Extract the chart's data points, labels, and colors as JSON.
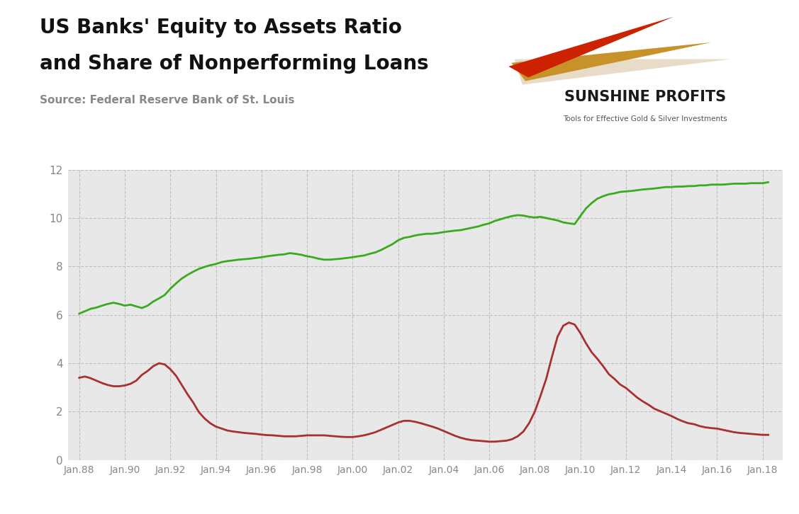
{
  "title_line1": "US Banks' Equity to Assets Ratio",
  "title_line2": "and Share of Nonperforming Loans",
  "source": "Source: Federal Reserve Bank of St. Louis",
  "plot_bg_color": "#e8e8e8",
  "outer_bg_color": "#ffffff",
  "ylim": [
    0,
    12
  ],
  "yticks": [
    0,
    2,
    4,
    6,
    8,
    10,
    12
  ],
  "xtick_labels": [
    "Jan.88",
    "Jan.90",
    "Jan.92",
    "Jan.94",
    "Jan.96",
    "Jan.98",
    "Jan.00",
    "Jan.02",
    "Jan.04",
    "Jan.06",
    "Jan.08",
    "Jan.10",
    "Jan.12",
    "Jan.14",
    "Jan.16",
    "Jan.18"
  ],
  "xtick_years": [
    1988,
    1990,
    1992,
    1994,
    1996,
    1998,
    2000,
    2002,
    2004,
    2006,
    2008,
    2010,
    2012,
    2014,
    2016,
    2018
  ],
  "green_color": "#3aaa1e",
  "red_color": "#a83030",
  "line_width": 2.0,
  "equity_data": [
    [
      1988.0,
      6.05
    ],
    [
      1988.25,
      6.15
    ],
    [
      1988.5,
      6.25
    ],
    [
      1988.75,
      6.3
    ],
    [
      1989.0,
      6.38
    ],
    [
      1989.25,
      6.45
    ],
    [
      1989.5,
      6.5
    ],
    [
      1989.75,
      6.45
    ],
    [
      1990.0,
      6.38
    ],
    [
      1990.25,
      6.42
    ],
    [
      1990.5,
      6.35
    ],
    [
      1990.75,
      6.28
    ],
    [
      1991.0,
      6.38
    ],
    [
      1991.25,
      6.55
    ],
    [
      1991.5,
      6.68
    ],
    [
      1991.75,
      6.82
    ],
    [
      1992.0,
      7.08
    ],
    [
      1992.25,
      7.3
    ],
    [
      1992.5,
      7.5
    ],
    [
      1992.75,
      7.65
    ],
    [
      1993.0,
      7.78
    ],
    [
      1993.25,
      7.9
    ],
    [
      1993.5,
      7.98
    ],
    [
      1993.75,
      8.05
    ],
    [
      1994.0,
      8.1
    ],
    [
      1994.25,
      8.18
    ],
    [
      1994.5,
      8.22
    ],
    [
      1994.75,
      8.25
    ],
    [
      1995.0,
      8.28
    ],
    [
      1995.25,
      8.3
    ],
    [
      1995.5,
      8.32
    ],
    [
      1995.75,
      8.35
    ],
    [
      1996.0,
      8.38
    ],
    [
      1996.25,
      8.42
    ],
    [
      1996.5,
      8.45
    ],
    [
      1996.75,
      8.48
    ],
    [
      1997.0,
      8.5
    ],
    [
      1997.25,
      8.55
    ],
    [
      1997.5,
      8.52
    ],
    [
      1997.75,
      8.48
    ],
    [
      1998.0,
      8.42
    ],
    [
      1998.25,
      8.38
    ],
    [
      1998.5,
      8.32
    ],
    [
      1998.75,
      8.28
    ],
    [
      1999.0,
      8.28
    ],
    [
      1999.25,
      8.3
    ],
    [
      1999.5,
      8.32
    ],
    [
      1999.75,
      8.35
    ],
    [
      2000.0,
      8.38
    ],
    [
      2000.25,
      8.42
    ],
    [
      2000.5,
      8.45
    ],
    [
      2000.75,
      8.52
    ],
    [
      2001.0,
      8.58
    ],
    [
      2001.25,
      8.68
    ],
    [
      2001.5,
      8.8
    ],
    [
      2001.75,
      8.92
    ],
    [
      2002.0,
      9.08
    ],
    [
      2002.25,
      9.18
    ],
    [
      2002.5,
      9.22
    ],
    [
      2002.75,
      9.28
    ],
    [
      2003.0,
      9.32
    ],
    [
      2003.25,
      9.35
    ],
    [
      2003.5,
      9.35
    ],
    [
      2003.75,
      9.38
    ],
    [
      2004.0,
      9.42
    ],
    [
      2004.25,
      9.45
    ],
    [
      2004.5,
      9.48
    ],
    [
      2004.75,
      9.5
    ],
    [
      2005.0,
      9.55
    ],
    [
      2005.25,
      9.6
    ],
    [
      2005.5,
      9.65
    ],
    [
      2005.75,
      9.72
    ],
    [
      2006.0,
      9.78
    ],
    [
      2006.25,
      9.88
    ],
    [
      2006.5,
      9.95
    ],
    [
      2006.75,
      10.02
    ],
    [
      2007.0,
      10.08
    ],
    [
      2007.25,
      10.12
    ],
    [
      2007.5,
      10.1
    ],
    [
      2007.75,
      10.05
    ],
    [
      2008.0,
      10.02
    ],
    [
      2008.25,
      10.05
    ],
    [
      2008.5,
      10.0
    ],
    [
      2008.75,
      9.95
    ],
    [
      2009.0,
      9.9
    ],
    [
      2009.25,
      9.82
    ],
    [
      2009.5,
      9.78
    ],
    [
      2009.75,
      9.75
    ],
    [
      2010.0,
      10.08
    ],
    [
      2010.25,
      10.4
    ],
    [
      2010.5,
      10.62
    ],
    [
      2010.75,
      10.8
    ],
    [
      2011.0,
      10.9
    ],
    [
      2011.25,
      10.98
    ],
    [
      2011.5,
      11.02
    ],
    [
      2011.75,
      11.08
    ],
    [
      2012.0,
      11.1
    ],
    [
      2012.25,
      11.12
    ],
    [
      2012.5,
      11.15
    ],
    [
      2012.75,
      11.18
    ],
    [
      2013.0,
      11.2
    ],
    [
      2013.25,
      11.22
    ],
    [
      2013.5,
      11.25
    ],
    [
      2013.75,
      11.28
    ],
    [
      2014.0,
      11.28
    ],
    [
      2014.25,
      11.3
    ],
    [
      2014.5,
      11.3
    ],
    [
      2014.75,
      11.32
    ],
    [
      2015.0,
      11.32
    ],
    [
      2015.25,
      11.35
    ],
    [
      2015.5,
      11.35
    ],
    [
      2015.75,
      11.38
    ],
    [
      2016.0,
      11.38
    ],
    [
      2016.25,
      11.38
    ],
    [
      2016.5,
      11.4
    ],
    [
      2016.75,
      11.42
    ],
    [
      2017.0,
      11.42
    ],
    [
      2017.25,
      11.42
    ],
    [
      2017.5,
      11.44
    ],
    [
      2017.75,
      11.44
    ],
    [
      2018.0,
      11.44
    ],
    [
      2018.25,
      11.48
    ]
  ],
  "npl_data": [
    [
      1988.0,
      3.4
    ],
    [
      1988.25,
      3.45
    ],
    [
      1988.5,
      3.38
    ],
    [
      1988.75,
      3.28
    ],
    [
      1989.0,
      3.18
    ],
    [
      1989.25,
      3.1
    ],
    [
      1989.5,
      3.05
    ],
    [
      1989.75,
      3.05
    ],
    [
      1990.0,
      3.08
    ],
    [
      1990.25,
      3.15
    ],
    [
      1990.5,
      3.28
    ],
    [
      1990.75,
      3.52
    ],
    [
      1991.0,
      3.68
    ],
    [
      1991.25,
      3.88
    ],
    [
      1991.5,
      4.0
    ],
    [
      1991.75,
      3.95
    ],
    [
      1992.0,
      3.75
    ],
    [
      1992.25,
      3.48
    ],
    [
      1992.5,
      3.1
    ],
    [
      1992.75,
      2.72
    ],
    [
      1993.0,
      2.38
    ],
    [
      1993.25,
      1.98
    ],
    [
      1993.5,
      1.72
    ],
    [
      1993.75,
      1.52
    ],
    [
      1994.0,
      1.38
    ],
    [
      1994.25,
      1.3
    ],
    [
      1994.5,
      1.22
    ],
    [
      1994.75,
      1.18
    ],
    [
      1995.0,
      1.15
    ],
    [
      1995.25,
      1.12
    ],
    [
      1995.5,
      1.1
    ],
    [
      1995.75,
      1.08
    ],
    [
      1996.0,
      1.05
    ],
    [
      1996.25,
      1.03
    ],
    [
      1996.5,
      1.02
    ],
    [
      1996.75,
      1.0
    ],
    [
      1997.0,
      0.98
    ],
    [
      1997.25,
      0.98
    ],
    [
      1997.5,
      0.98
    ],
    [
      1997.75,
      1.0
    ],
    [
      1998.0,
      1.02
    ],
    [
      1998.25,
      1.02
    ],
    [
      1998.5,
      1.02
    ],
    [
      1998.75,
      1.02
    ],
    [
      1999.0,
      1.0
    ],
    [
      1999.25,
      0.98
    ],
    [
      1999.5,
      0.96
    ],
    [
      1999.75,
      0.95
    ],
    [
      2000.0,
      0.95
    ],
    [
      2000.25,
      0.98
    ],
    [
      2000.5,
      1.02
    ],
    [
      2000.75,
      1.08
    ],
    [
      2001.0,
      1.15
    ],
    [
      2001.25,
      1.25
    ],
    [
      2001.5,
      1.35
    ],
    [
      2001.75,
      1.45
    ],
    [
      2002.0,
      1.55
    ],
    [
      2002.25,
      1.62
    ],
    [
      2002.5,
      1.62
    ],
    [
      2002.75,
      1.58
    ],
    [
      2003.0,
      1.52
    ],
    [
      2003.25,
      1.45
    ],
    [
      2003.5,
      1.38
    ],
    [
      2003.75,
      1.3
    ],
    [
      2004.0,
      1.2
    ],
    [
      2004.25,
      1.1
    ],
    [
      2004.5,
      1.0
    ],
    [
      2004.75,
      0.92
    ],
    [
      2005.0,
      0.86
    ],
    [
      2005.25,
      0.82
    ],
    [
      2005.5,
      0.8
    ],
    [
      2005.75,
      0.78
    ],
    [
      2006.0,
      0.76
    ],
    [
      2006.25,
      0.76
    ],
    [
      2006.5,
      0.78
    ],
    [
      2006.75,
      0.8
    ],
    [
      2007.0,
      0.86
    ],
    [
      2007.25,
      0.98
    ],
    [
      2007.5,
      1.18
    ],
    [
      2007.75,
      1.52
    ],
    [
      2008.0,
      2.0
    ],
    [
      2008.25,
      2.65
    ],
    [
      2008.5,
      3.35
    ],
    [
      2008.75,
      4.25
    ],
    [
      2009.0,
      5.1
    ],
    [
      2009.25,
      5.55
    ],
    [
      2009.5,
      5.68
    ],
    [
      2009.75,
      5.6
    ],
    [
      2010.0,
      5.25
    ],
    [
      2010.25,
      4.82
    ],
    [
      2010.5,
      4.45
    ],
    [
      2010.75,
      4.18
    ],
    [
      2011.0,
      3.88
    ],
    [
      2011.25,
      3.55
    ],
    [
      2011.5,
      3.35
    ],
    [
      2011.75,
      3.12
    ],
    [
      2012.0,
      2.98
    ],
    [
      2012.25,
      2.78
    ],
    [
      2012.5,
      2.58
    ],
    [
      2012.75,
      2.42
    ],
    [
      2013.0,
      2.28
    ],
    [
      2013.25,
      2.12
    ],
    [
      2013.5,
      2.02
    ],
    [
      2013.75,
      1.92
    ],
    [
      2014.0,
      1.82
    ],
    [
      2014.25,
      1.7
    ],
    [
      2014.5,
      1.6
    ],
    [
      2014.75,
      1.52
    ],
    [
      2015.0,
      1.48
    ],
    [
      2015.25,
      1.4
    ],
    [
      2015.5,
      1.35
    ],
    [
      2015.75,
      1.32
    ],
    [
      2016.0,
      1.3
    ],
    [
      2016.25,
      1.25
    ],
    [
      2016.5,
      1.2
    ],
    [
      2016.75,
      1.15
    ],
    [
      2017.0,
      1.12
    ],
    [
      2017.25,
      1.1
    ],
    [
      2017.5,
      1.08
    ],
    [
      2017.75,
      1.06
    ],
    [
      2018.0,
      1.04
    ],
    [
      2018.25,
      1.04
    ]
  ]
}
